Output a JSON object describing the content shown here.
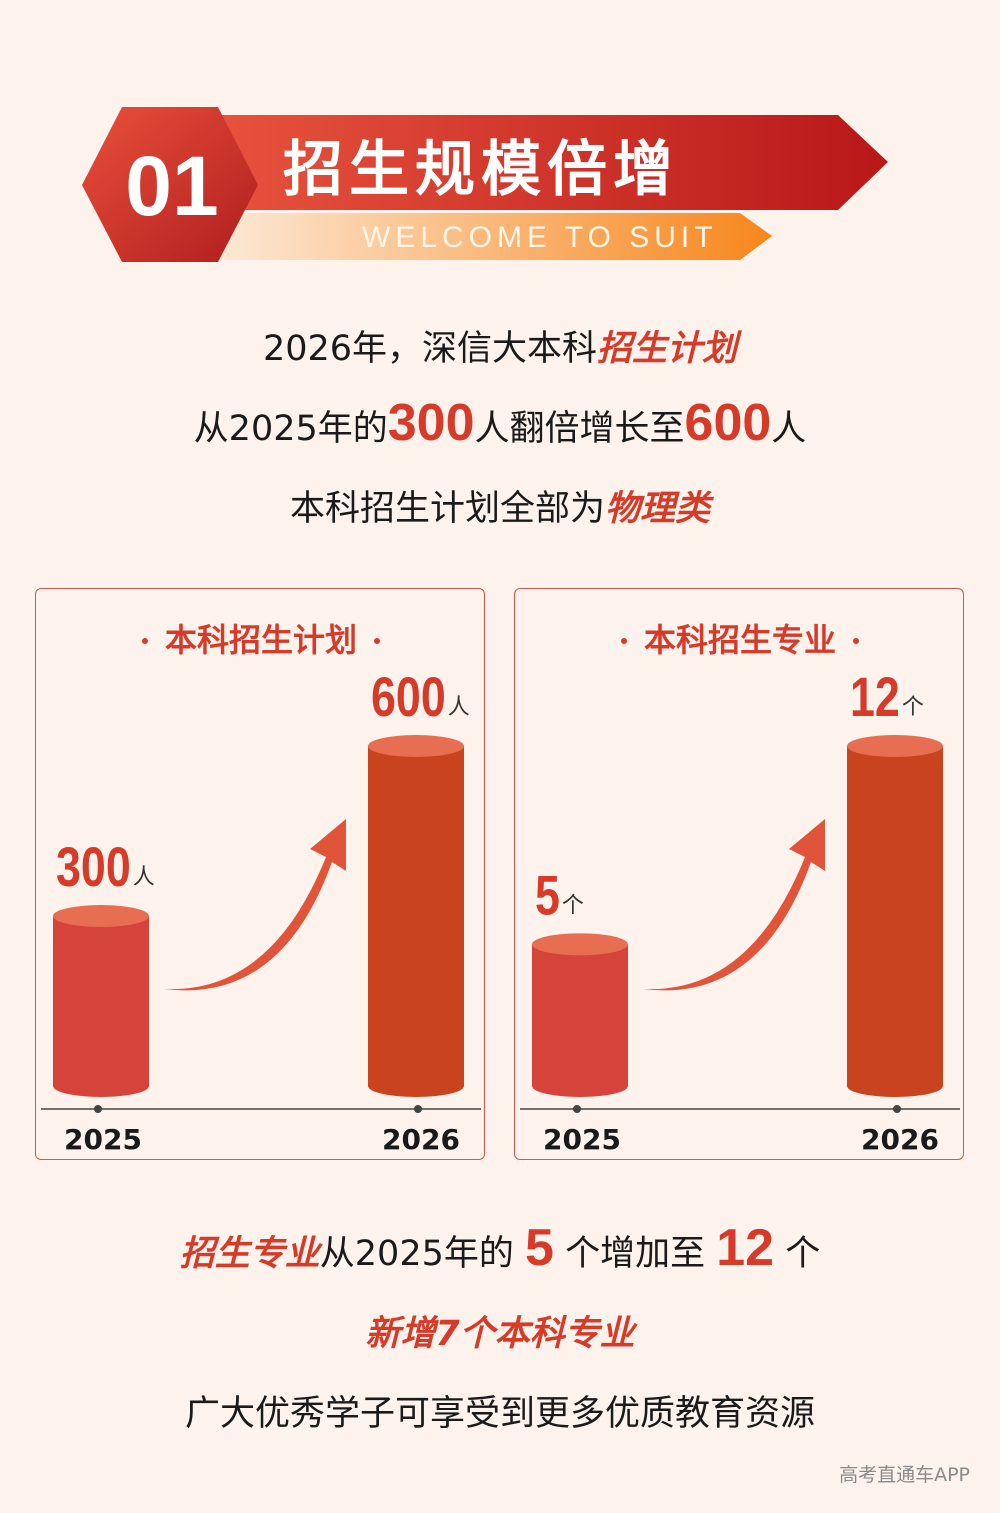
{
  "header": {
    "badge": "01",
    "title": "招生规模倍增",
    "subtitle": "WELCOME TO SUIT"
  },
  "intro": {
    "lines": [
      [
        "2026年，深信大本科",
        "招生计划"
      ],
      [
        "从2025年的",
        "300",
        "人翻倍增长至",
        "600",
        "人"
      ],
      [
        "本科招生计划全部为",
        "物理类"
      ]
    ]
  },
  "chart_data": [
    {
      "type": "bar",
      "title": "本科招生计划",
      "categories": [
        "2025",
        "2026"
      ],
      "values": [
        300,
        600
      ],
      "unit": "人",
      "colors": [
        "#d6433b",
        "#c9431f"
      ]
    },
    {
      "type": "bar",
      "title": "本科招生专业",
      "categories": [
        "2025",
        "2026"
      ],
      "values": [
        5,
        12
      ],
      "unit": "个",
      "colors": [
        "#d6433b",
        "#c9431f"
      ]
    }
  ],
  "summary": {
    "lines": [
      [
        "招生专业",
        "从2025年的",
        "5",
        "个增加至",
        "12",
        "个"
      ],
      [
        "新增7个本科专业"
      ],
      [
        "广大优秀学子可享受到更多优质教育资源"
      ]
    ]
  },
  "watermark": "高考直通车APP"
}
